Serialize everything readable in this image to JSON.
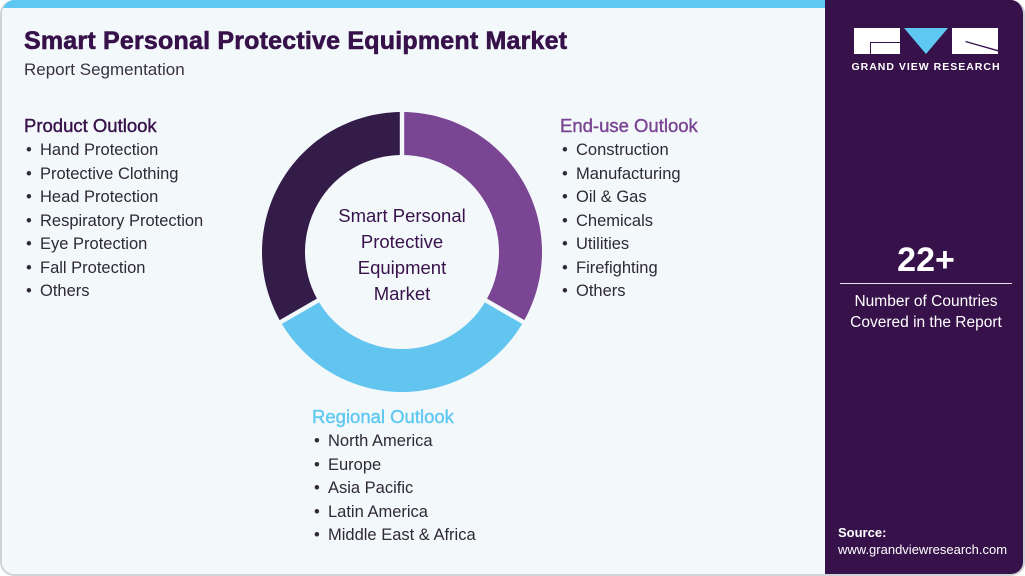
{
  "header": {
    "title": "Smart Personal Protective Equipment Market",
    "subtitle": "Report Segmentation"
  },
  "colors": {
    "brand_dark_purple": "#37114a",
    "accent_purple": "#7a4593",
    "accent_light_blue": "#5ec8f2",
    "background": "#f3f8fb"
  },
  "product_outlook": {
    "title": "Product Outlook",
    "items": [
      "Hand Protection",
      "Protective Clothing",
      "Head Protection",
      "Respiratory Protection",
      "Eye Protection",
      "Fall Protection",
      "Others"
    ]
  },
  "enduse_outlook": {
    "title": "End-use Outlook",
    "items": [
      "Construction",
      "Manufacturing",
      "Oil & Gas",
      "Chemicals",
      "Utilities",
      "Firefighting",
      "Others"
    ]
  },
  "regional_outlook": {
    "title": "Regional Outlook",
    "items": [
      "North America",
      "Europe",
      "Asia Pacific",
      "Latin America",
      "Middle East & Africa"
    ]
  },
  "donut": {
    "center_lines": [
      "Smart Personal",
      "Protective",
      "Equipment",
      "Market"
    ],
    "segments": [
      {
        "name": "End-use Outlook",
        "color": "#7a4593",
        "start_deg": 0,
        "end_deg": 120
      },
      {
        "name": "Regional Outlook",
        "color": "#62c5ef",
        "start_deg": 120,
        "end_deg": 240
      },
      {
        "name": "Product Outlook",
        "color": "#341c48",
        "start_deg": 240,
        "end_deg": 360
      }
    ]
  },
  "sidebar": {
    "logo_text": "GRAND VIEW RESEARCH",
    "stat_number": "22+",
    "stat_label_line1": "Number of Countries",
    "stat_label_line2": "Covered in the Report",
    "source_label": "Source:",
    "source_url": "www.grandviewresearch.com"
  }
}
